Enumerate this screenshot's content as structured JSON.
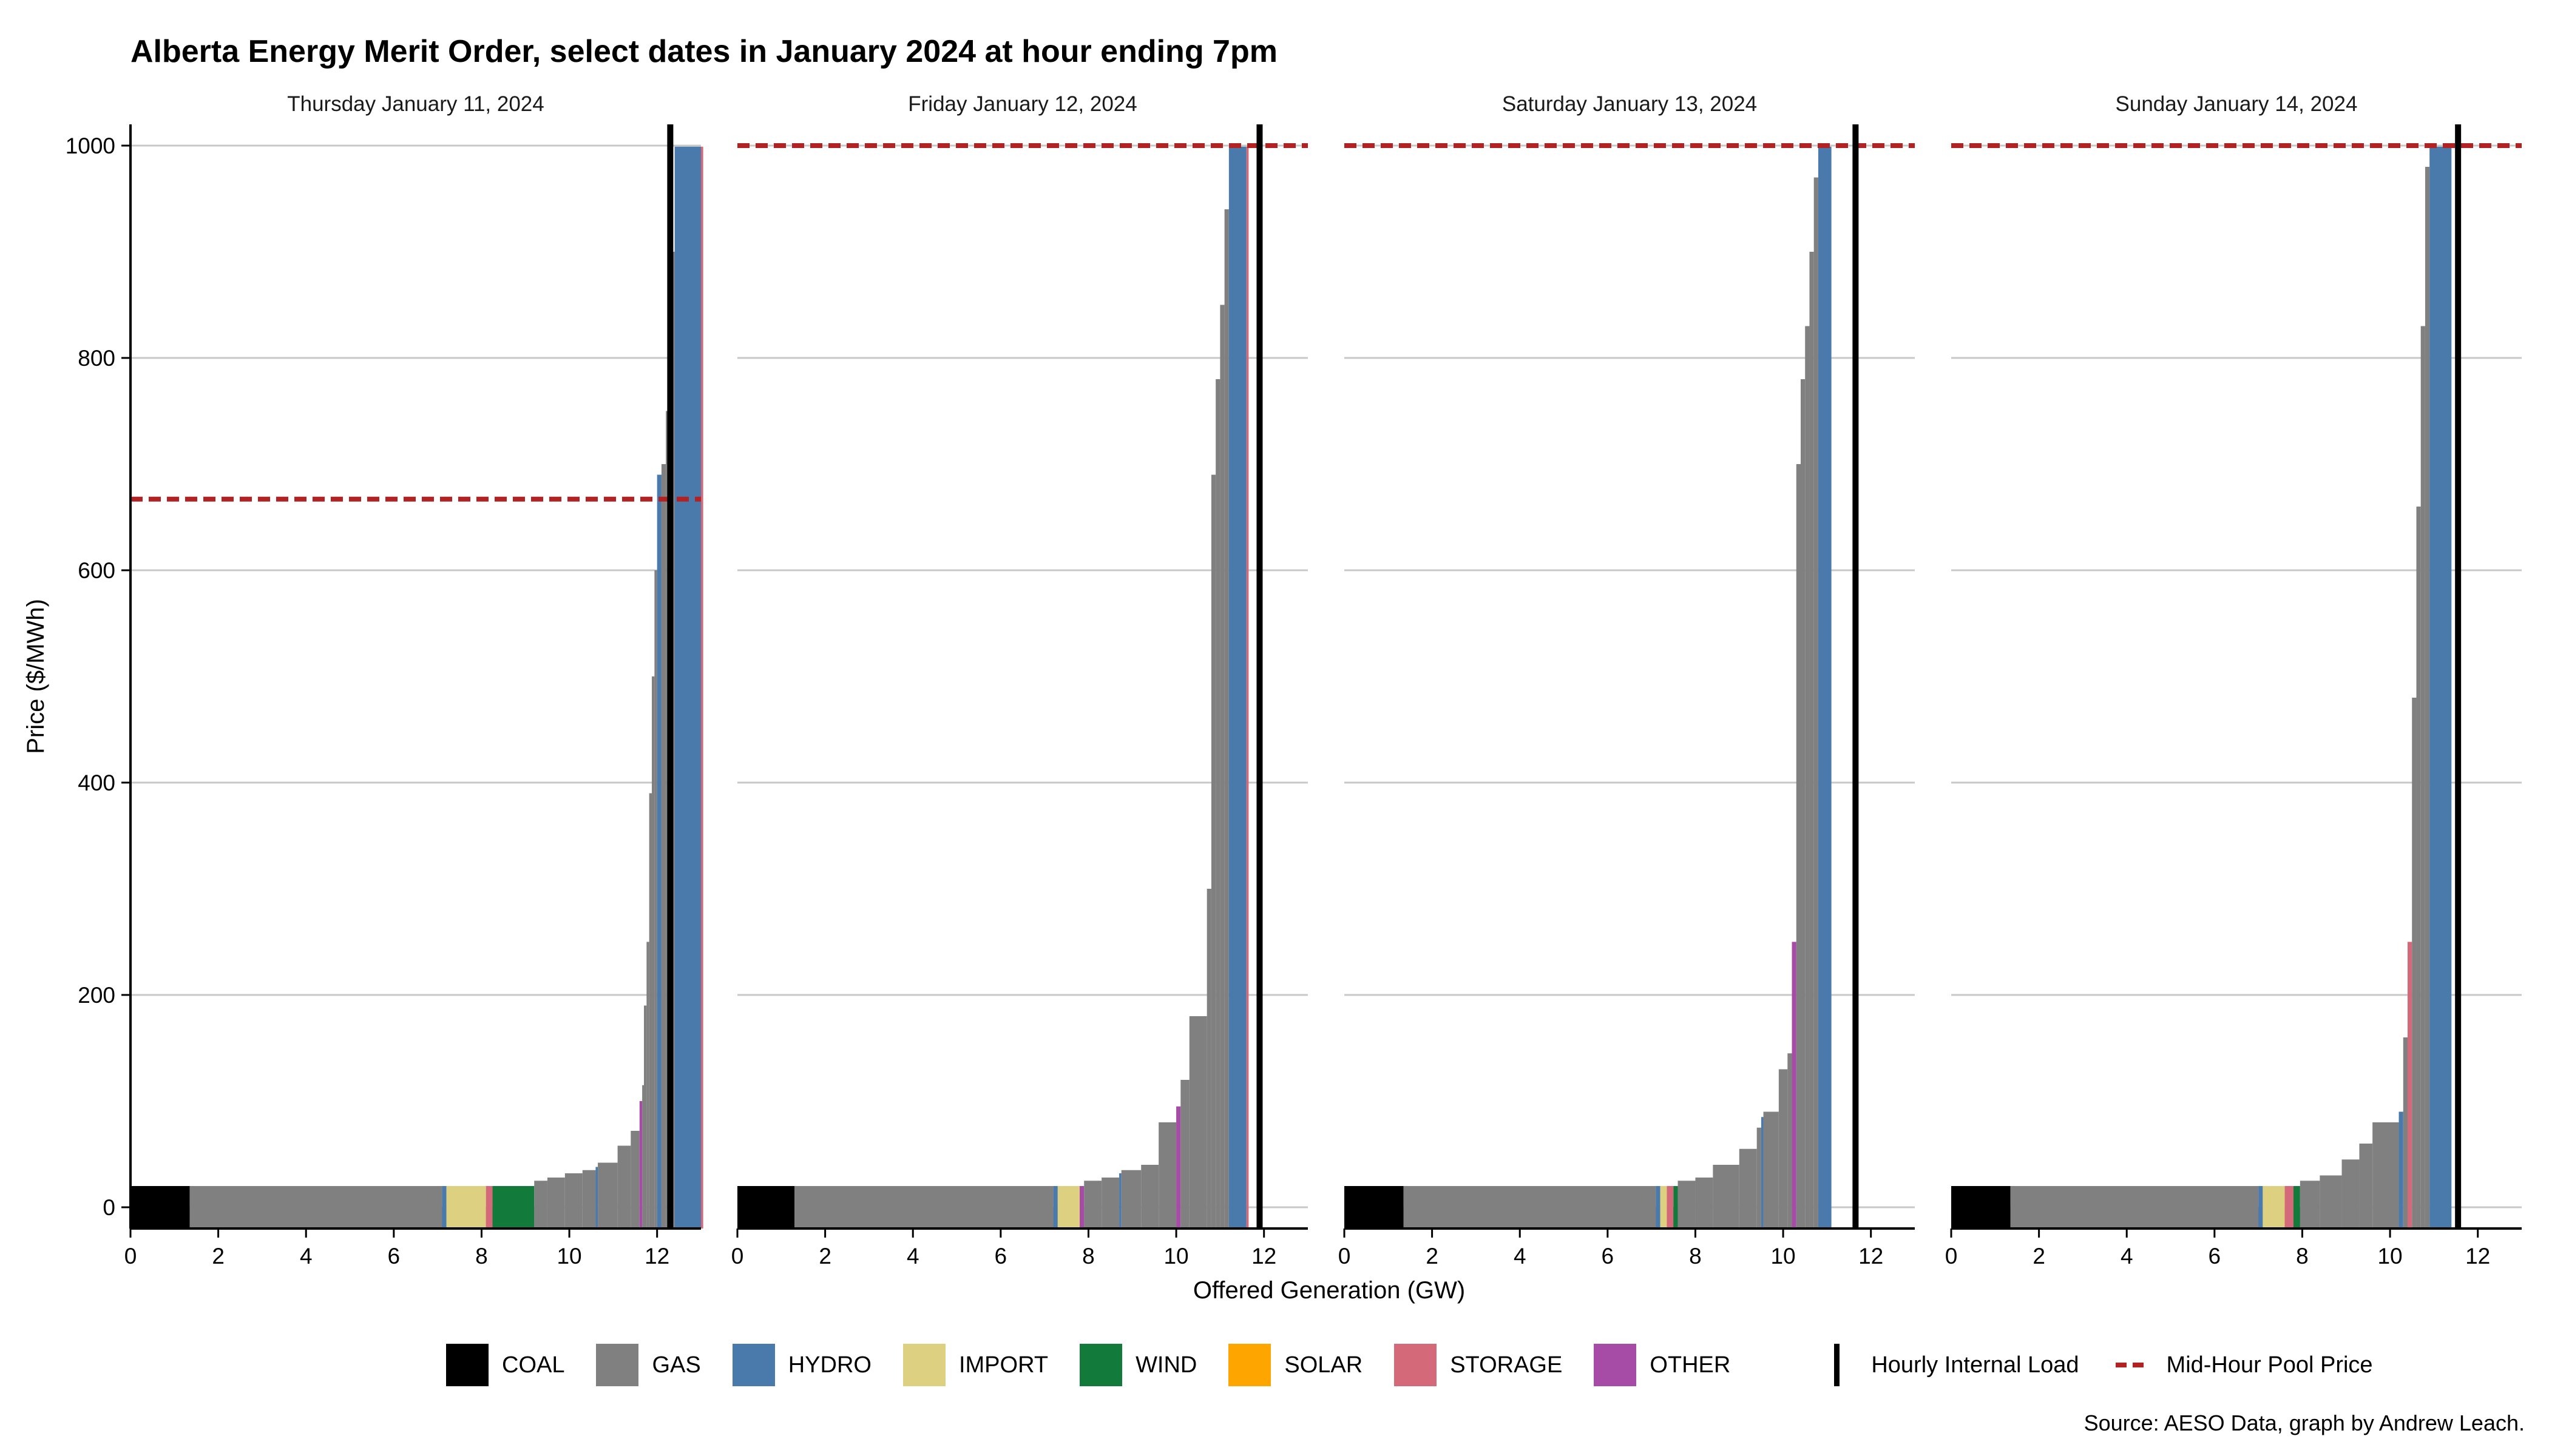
{
  "title": "Alberta Energy Merit Order, select dates in January 2024 at hour ending 7pm",
  "caption": "Source: AESO Data, graph by Andrew Leach.",
  "colors": {
    "COAL": "#000000",
    "GAS": "#808080",
    "HYDRO": "#4a7aab",
    "IMPORT": "#ddd080",
    "WIND": "#127a3b",
    "SOLAR": "#ffa500",
    "STORAGE": "#d46a79",
    "OTHER": "#a64ca6",
    "load": "#000000",
    "price": "#b22222",
    "grid": "#c8c8c8"
  },
  "legend": {
    "items": [
      {
        "label": "COAL",
        "color": "#000000"
      },
      {
        "label": "GAS",
        "color": "#808080"
      },
      {
        "label": "HYDRO",
        "color": "#4a7aab"
      },
      {
        "label": "IMPORT",
        "color": "#ddd080"
      },
      {
        "label": "WIND",
        "color": "#127a3b"
      },
      {
        "label": "SOLAR",
        "color": "#ffa500"
      },
      {
        "label": "STORAGE",
        "color": "#d46a79"
      },
      {
        "label": "OTHER",
        "color": "#a64ca6"
      }
    ],
    "load_label": "Hourly Internal Load",
    "price_label": "Mid-Hour Pool Price"
  },
  "chart_data": {
    "type": "area",
    "xlabel": "Offered Generation (GW)",
    "ylabel": "Price ($/MWh)",
    "xlim": [
      0,
      13
    ],
    "ylim": [
      -20,
      1020
    ],
    "xticks": [
      0,
      2,
      4,
      6,
      8,
      10,
      12
    ],
    "yticks": [
      0,
      200,
      400,
      600,
      800,
      1000
    ],
    "grid": "horizontal",
    "legend_position": "bottom",
    "panels": [
      {
        "title": "Thursday January 11, 2024",
        "hourly_internal_load_gw": 12.3,
        "pool_price": 667,
        "offers": [
          {
            "x0": 0,
            "x1": 1.35,
            "price": 0,
            "fuel": "COAL"
          },
          {
            "x0": 1.35,
            "x1": 7.1,
            "price": 0,
            "fuel": "GAS"
          },
          {
            "x0": 7.1,
            "x1": 7.2,
            "price": 0,
            "fuel": "HYDRO"
          },
          {
            "x0": 7.2,
            "x1": 8.1,
            "price": 0,
            "fuel": "IMPORT"
          },
          {
            "x0": 8.1,
            "x1": 8.25,
            "price": 0,
            "fuel": "STORAGE"
          },
          {
            "x0": 8.25,
            "x1": 9.2,
            "price": 0,
            "fuel": "WIND"
          },
          {
            "x0": 9.2,
            "x1": 9.5,
            "price": 25,
            "fuel": "GAS"
          },
          {
            "x0": 9.5,
            "x1": 9.9,
            "price": 28,
            "fuel": "GAS"
          },
          {
            "x0": 9.9,
            "x1": 10.3,
            "price": 32,
            "fuel": "GAS"
          },
          {
            "x0": 10.3,
            "x1": 10.6,
            "price": 35,
            "fuel": "GAS"
          },
          {
            "x0": 10.6,
            "x1": 10.65,
            "price": 38,
            "fuel": "HYDRO"
          },
          {
            "x0": 10.65,
            "x1": 11.1,
            "price": 42,
            "fuel": "GAS"
          },
          {
            "x0": 11.1,
            "x1": 11.4,
            "price": 58,
            "fuel": "GAS"
          },
          {
            "x0": 11.4,
            "x1": 11.6,
            "price": 72,
            "fuel": "GAS"
          },
          {
            "x0": 11.6,
            "x1": 11.66,
            "price": 100,
            "fuel": "OTHER"
          },
          {
            "x0": 11.66,
            "x1": 11.7,
            "price": 115,
            "fuel": "GAS"
          },
          {
            "x0": 11.7,
            "x1": 11.76,
            "price": 190,
            "fuel": "GAS"
          },
          {
            "x0": 11.76,
            "x1": 11.82,
            "price": 250,
            "fuel": "GAS"
          },
          {
            "x0": 11.82,
            "x1": 11.88,
            "price": 390,
            "fuel": "GAS"
          },
          {
            "x0": 11.88,
            "x1": 11.94,
            "price": 500,
            "fuel": "GAS"
          },
          {
            "x0": 11.94,
            "x1": 12.0,
            "price": 600,
            "fuel": "GAS"
          },
          {
            "x0": 12.0,
            "x1": 12.1,
            "price": 690,
            "fuel": "HYDRO"
          },
          {
            "x0": 12.1,
            "x1": 12.2,
            "price": 700,
            "fuel": "GAS"
          },
          {
            "x0": 12.2,
            "x1": 12.3,
            "price": 750,
            "fuel": "GAS"
          },
          {
            "x0": 12.3,
            "x1": 12.4,
            "price": 900,
            "fuel": "GAS"
          },
          {
            "x0": 12.4,
            "x1": 13.0,
            "price": 999,
            "fuel": "HYDRO"
          },
          {
            "x0": 13.0,
            "x1": 13.05,
            "price": 999,
            "fuel": "STORAGE"
          }
        ]
      },
      {
        "title": "Friday January 12, 2024",
        "hourly_internal_load_gw": 11.9,
        "pool_price": 999.99,
        "offers": [
          {
            "x0": 0,
            "x1": 1.3,
            "price": 0,
            "fuel": "COAL"
          },
          {
            "x0": 1.3,
            "x1": 7.2,
            "price": 0,
            "fuel": "GAS"
          },
          {
            "x0": 7.2,
            "x1": 7.3,
            "price": 0,
            "fuel": "HYDRO"
          },
          {
            "x0": 7.3,
            "x1": 7.8,
            "price": 0,
            "fuel": "IMPORT"
          },
          {
            "x0": 7.8,
            "x1": 7.9,
            "price": 0,
            "fuel": "OTHER"
          },
          {
            "x0": 7.9,
            "x1": 8.3,
            "price": 25,
            "fuel": "GAS"
          },
          {
            "x0": 8.3,
            "x1": 8.7,
            "price": 28,
            "fuel": "GAS"
          },
          {
            "x0": 8.7,
            "x1": 8.75,
            "price": 32,
            "fuel": "HYDRO"
          },
          {
            "x0": 8.75,
            "x1": 9.2,
            "price": 35,
            "fuel": "GAS"
          },
          {
            "x0": 9.2,
            "x1": 9.6,
            "price": 40,
            "fuel": "GAS"
          },
          {
            "x0": 9.6,
            "x1": 10.0,
            "price": 80,
            "fuel": "GAS"
          },
          {
            "x0": 10.0,
            "x1": 10.1,
            "price": 95,
            "fuel": "OTHER"
          },
          {
            "x0": 10.1,
            "x1": 10.3,
            "price": 120,
            "fuel": "GAS"
          },
          {
            "x0": 10.3,
            "x1": 10.7,
            "price": 180,
            "fuel": "GAS"
          },
          {
            "x0": 10.7,
            "x1": 10.8,
            "price": 300,
            "fuel": "GAS"
          },
          {
            "x0": 10.8,
            "x1": 10.9,
            "price": 690,
            "fuel": "GAS"
          },
          {
            "x0": 10.9,
            "x1": 11.0,
            "price": 780,
            "fuel": "GAS"
          },
          {
            "x0": 11.0,
            "x1": 11.1,
            "price": 850,
            "fuel": "GAS"
          },
          {
            "x0": 11.1,
            "x1": 11.2,
            "price": 940,
            "fuel": "GAS"
          },
          {
            "x0": 11.2,
            "x1": 11.6,
            "price": 999,
            "fuel": "HYDRO"
          },
          {
            "x0": 11.6,
            "x1": 11.65,
            "price": 999,
            "fuel": "STORAGE"
          }
        ]
      },
      {
        "title": "Saturday January 13, 2024",
        "hourly_internal_load_gw": 11.65,
        "pool_price": 999.99,
        "offers": [
          {
            "x0": 0,
            "x1": 1.35,
            "price": 0,
            "fuel": "COAL"
          },
          {
            "x0": 1.35,
            "x1": 7.1,
            "price": 0,
            "fuel": "GAS"
          },
          {
            "x0": 7.1,
            "x1": 7.2,
            "price": 0,
            "fuel": "HYDRO"
          },
          {
            "x0": 7.2,
            "x1": 7.35,
            "price": 0,
            "fuel": "IMPORT"
          },
          {
            "x0": 7.35,
            "x1": 7.5,
            "price": 0,
            "fuel": "STORAGE"
          },
          {
            "x0": 7.5,
            "x1": 7.6,
            "price": 0,
            "fuel": "WIND"
          },
          {
            "x0": 7.6,
            "x1": 8.0,
            "price": 25,
            "fuel": "GAS"
          },
          {
            "x0": 8.0,
            "x1": 8.4,
            "price": 28,
            "fuel": "GAS"
          },
          {
            "x0": 8.4,
            "x1": 9.0,
            "price": 40,
            "fuel": "GAS"
          },
          {
            "x0": 9.0,
            "x1": 9.4,
            "price": 55,
            "fuel": "GAS"
          },
          {
            "x0": 9.4,
            "x1": 9.5,
            "price": 75,
            "fuel": "GAS"
          },
          {
            "x0": 9.5,
            "x1": 9.55,
            "price": 85,
            "fuel": "HYDRO"
          },
          {
            "x0": 9.55,
            "x1": 9.9,
            "price": 90,
            "fuel": "GAS"
          },
          {
            "x0": 9.9,
            "x1": 10.1,
            "price": 130,
            "fuel": "GAS"
          },
          {
            "x0": 10.1,
            "x1": 10.2,
            "price": 145,
            "fuel": "GAS"
          },
          {
            "x0": 10.2,
            "x1": 10.3,
            "price": 250,
            "fuel": "OTHER"
          },
          {
            "x0": 10.3,
            "x1": 10.4,
            "price": 700,
            "fuel": "GAS"
          },
          {
            "x0": 10.4,
            "x1": 10.5,
            "price": 780,
            "fuel": "GAS"
          },
          {
            "x0": 10.5,
            "x1": 10.6,
            "price": 830,
            "fuel": "GAS"
          },
          {
            "x0": 10.6,
            "x1": 10.7,
            "price": 900,
            "fuel": "GAS"
          },
          {
            "x0": 10.7,
            "x1": 10.8,
            "price": 970,
            "fuel": "GAS"
          },
          {
            "x0": 10.8,
            "x1": 11.1,
            "price": 999,
            "fuel": "HYDRO"
          }
        ]
      },
      {
        "title": "Sunday January 14, 2024",
        "hourly_internal_load_gw": 11.55,
        "pool_price": 999.99,
        "offers": [
          {
            "x0": 0,
            "x1": 1.35,
            "price": 0,
            "fuel": "COAL"
          },
          {
            "x0": 1.35,
            "x1": 7.0,
            "price": 0,
            "fuel": "GAS"
          },
          {
            "x0": 7.0,
            "x1": 7.1,
            "price": 0,
            "fuel": "HYDRO"
          },
          {
            "x0": 7.1,
            "x1": 7.6,
            "price": 0,
            "fuel": "IMPORT"
          },
          {
            "x0": 7.6,
            "x1": 7.8,
            "price": 0,
            "fuel": "STORAGE"
          },
          {
            "x0": 7.8,
            "x1": 7.95,
            "price": 0,
            "fuel": "WIND"
          },
          {
            "x0": 7.95,
            "x1": 8.4,
            "price": 25,
            "fuel": "GAS"
          },
          {
            "x0": 8.4,
            "x1": 8.9,
            "price": 30,
            "fuel": "GAS"
          },
          {
            "x0": 8.9,
            "x1": 9.3,
            "price": 45,
            "fuel": "GAS"
          },
          {
            "x0": 9.3,
            "x1": 9.6,
            "price": 60,
            "fuel": "GAS"
          },
          {
            "x0": 9.6,
            "x1": 10.2,
            "price": 80,
            "fuel": "GAS"
          },
          {
            "x0": 10.2,
            "x1": 10.3,
            "price": 90,
            "fuel": "HYDRO"
          },
          {
            "x0": 10.3,
            "x1": 10.4,
            "price": 160,
            "fuel": "GAS"
          },
          {
            "x0": 10.4,
            "x1": 10.5,
            "price": 250,
            "fuel": "STORAGE"
          },
          {
            "x0": 10.5,
            "x1": 10.6,
            "price": 480,
            "fuel": "GAS"
          },
          {
            "x0": 10.6,
            "x1": 10.7,
            "price": 660,
            "fuel": "GAS"
          },
          {
            "x0": 10.7,
            "x1": 10.8,
            "price": 830,
            "fuel": "GAS"
          },
          {
            "x0": 10.8,
            "x1": 10.9,
            "price": 980,
            "fuel": "GAS"
          },
          {
            "x0": 10.9,
            "x1": 11.4,
            "price": 999,
            "fuel": "HYDRO"
          }
        ]
      }
    ]
  }
}
